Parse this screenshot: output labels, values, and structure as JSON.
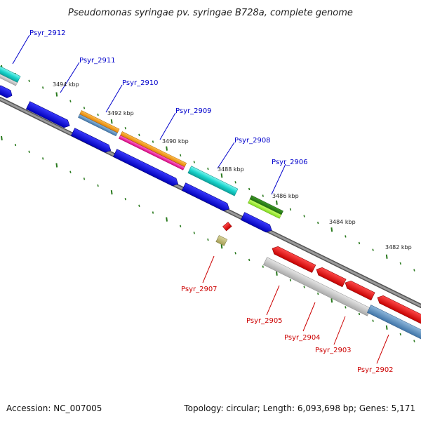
{
  "title": "Pseudomonas syringae pv. syringae B728a, complete genome",
  "footer": {
    "accession": "Accession: NC_007005",
    "summary": "Topology: circular; Length: 6,093,698 bp; Genes: 5,171"
  },
  "colors": {
    "forward_label": "#0000cc",
    "reverse_label": "#cc0000",
    "backbone": "#7a7a7a",
    "tick": "#2a7a1e",
    "cds_forward": "#0000ee",
    "cds_reverse": "#ff0000"
  },
  "scale_labels": [
    "3494 kbp",
    "3492 kbp",
    "3490 kbp",
    "3488 kbp",
    "3486 kbp",
    "3484 kbp",
    "3482 kbp"
  ],
  "genes": {
    "forward": [
      "Psyr_2912",
      "Psyr_2911",
      "Psyr_2910",
      "Psyr_2909",
      "Psyr_2908",
      "Psyr_2906"
    ],
    "reverse": [
      "Psyr_2907",
      "Psyr_2905",
      "Psyr_2904",
      "Psyr_2903",
      "Psyr_2902"
    ]
  }
}
